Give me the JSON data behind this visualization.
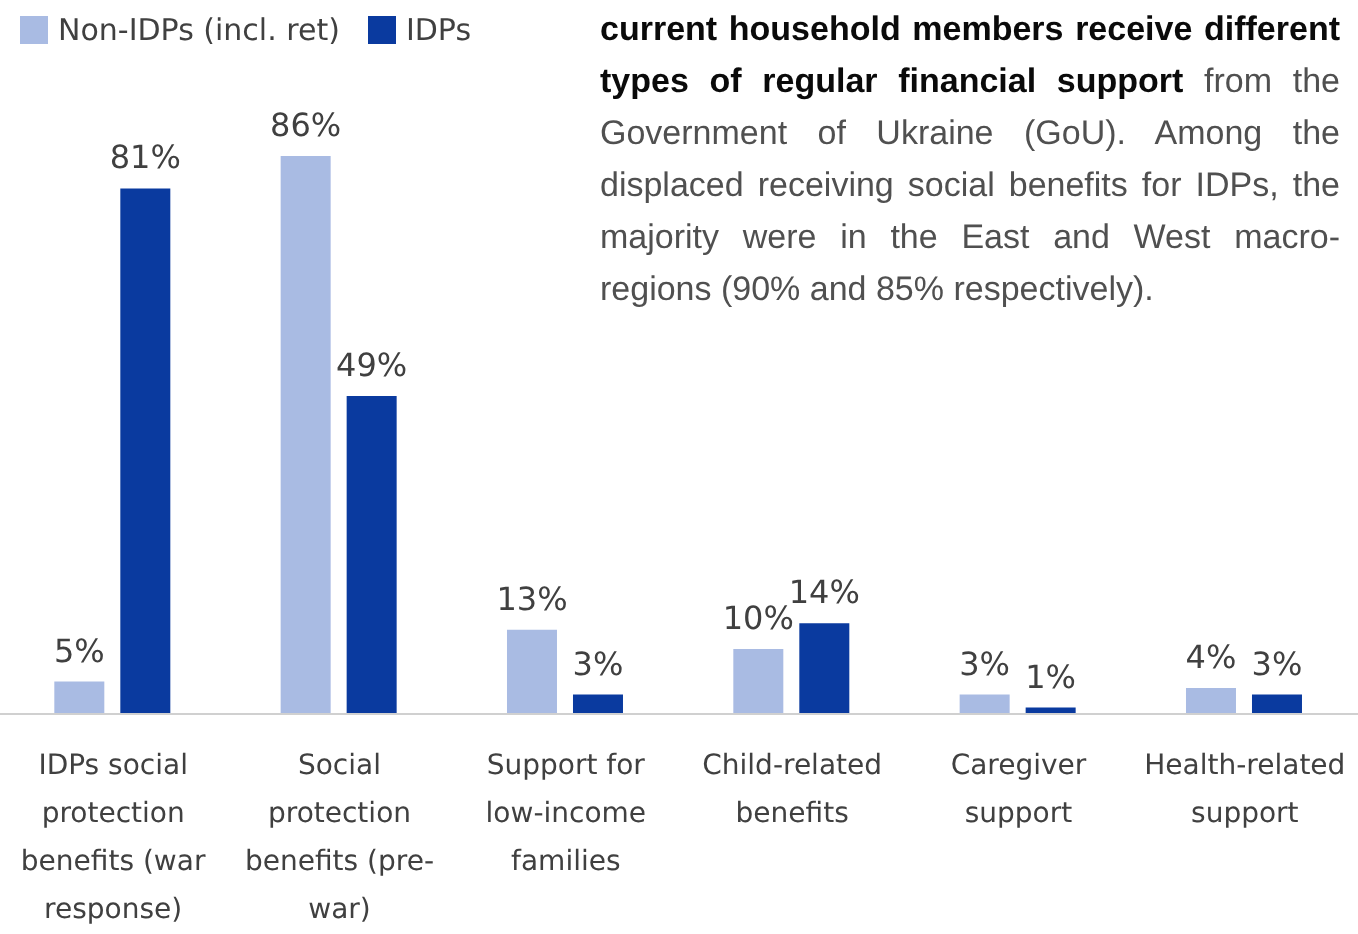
{
  "chart_data": {
    "type": "bar",
    "categories": [
      "IDPs social protection benefits (war response)",
      "Social protection benefits (pre-war)",
      "Support for low-income families",
      "Child-related benefits",
      "Caregiver support",
      "Health-related support"
    ],
    "series": [
      {
        "name": "Non-IDPs (incl. ret)",
        "color": "#a9bbe3",
        "values": [
          5,
          86,
          13,
          10,
          3,
          4
        ],
        "value_labels": [
          "5%",
          "86%",
          "13%",
          "10%",
          "3%",
          "4%"
        ]
      },
      {
        "name": "IDPs",
        "color": "#0a3a9f",
        "values": [
          81,
          49,
          3,
          14,
          1,
          3
        ],
        "value_labels": [
          "81%",
          "49%",
          "3%",
          "14%",
          "1%",
          "3%"
        ]
      }
    ],
    "grid": false,
    "legend": "top left",
    "annotations": [
      "current household members receive different types of regular financial support",
      "from the Government of Ukraine (GoU). Among the displaced receiving social benefits for IDPs, the majority were in the East and West macro-regions (90% and 85% respectively)."
    ]
  }
}
